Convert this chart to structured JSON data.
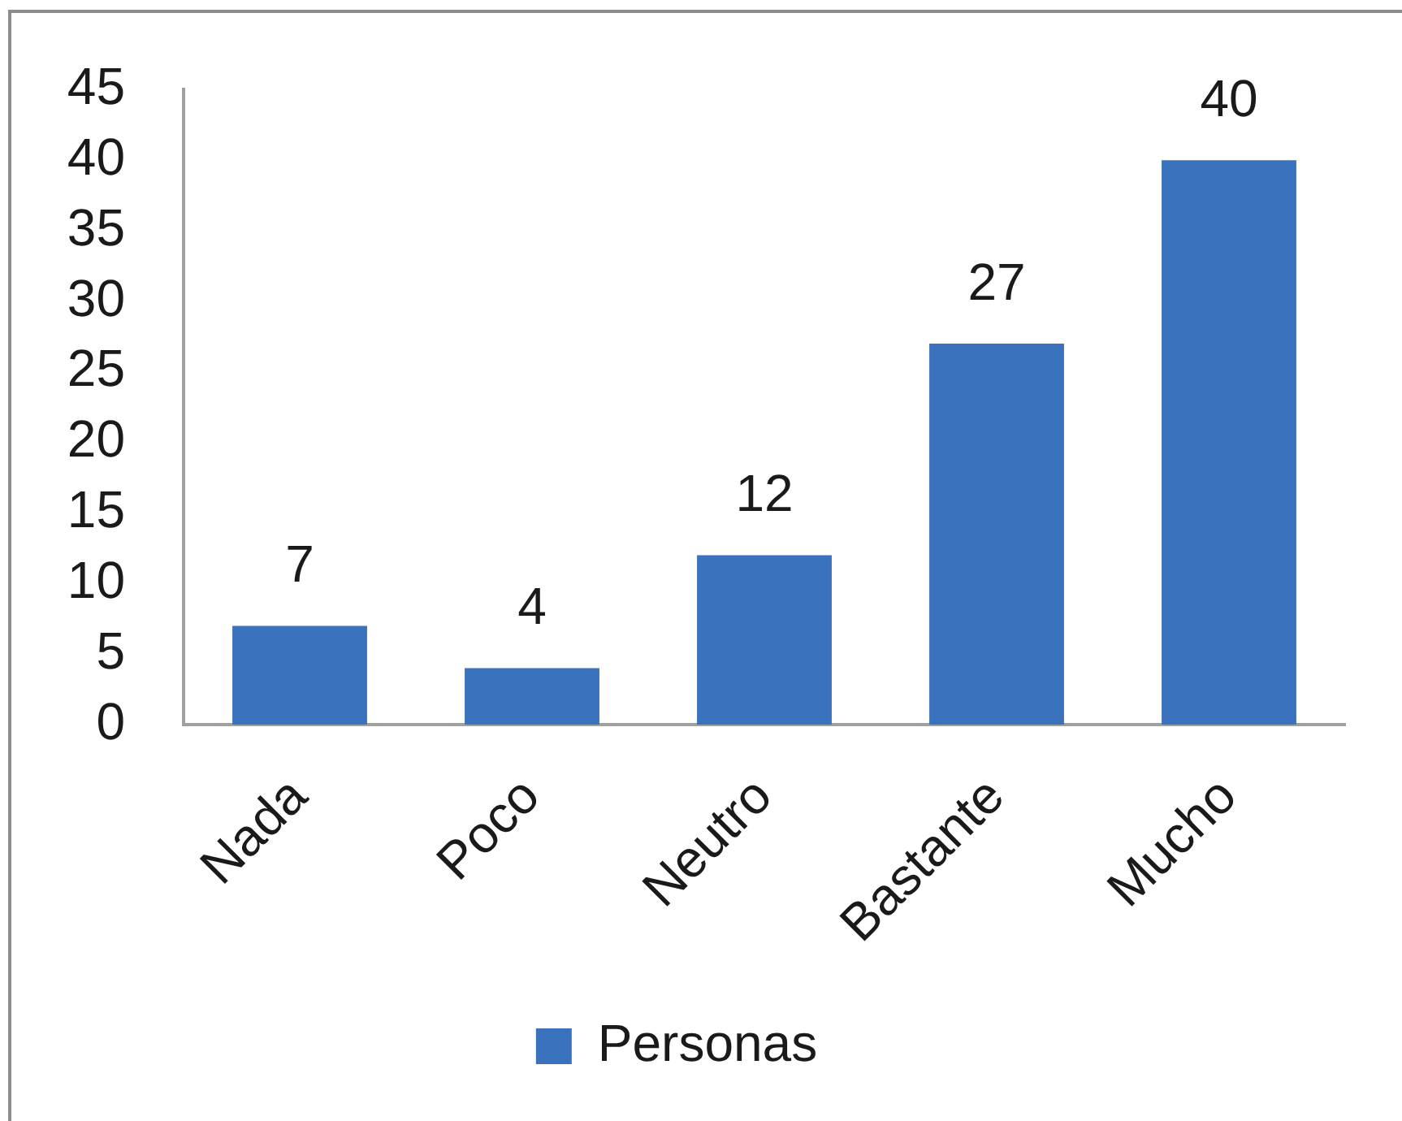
{
  "chart_data": {
    "type": "bar",
    "categories": [
      "Nada",
      "Poco",
      "Neutro",
      "Bastante",
      "Mucho"
    ],
    "series": [
      {
        "name": "Personas",
        "color": "#3a72bd",
        "values": [
          7,
          4,
          12,
          27,
          40
        ]
      }
    ],
    "ylim": [
      0,
      45
    ],
    "yticks": [
      0,
      5,
      10,
      15,
      20,
      25,
      30,
      35,
      40,
      45
    ],
    "grid": false,
    "legend": "bottom",
    "data_labels": true
  }
}
